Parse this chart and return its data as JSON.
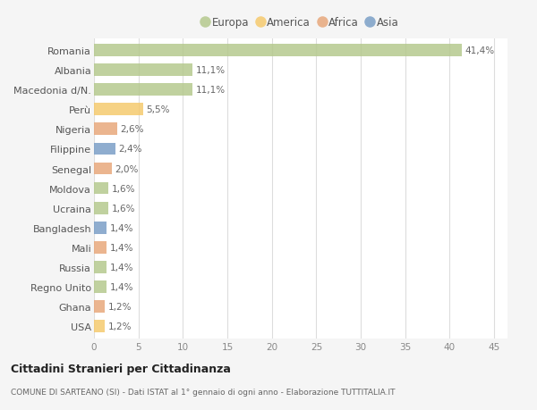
{
  "countries": [
    "Romania",
    "Albania",
    "Macedonia d/N.",
    "Perù",
    "Nigeria",
    "Filippine",
    "Senegal",
    "Moldova",
    "Ucraina",
    "Bangladesh",
    "Mali",
    "Russia",
    "Regno Unito",
    "Ghana",
    "USA"
  ],
  "values": [
    41.4,
    11.1,
    11.1,
    5.5,
    2.6,
    2.4,
    2.0,
    1.6,
    1.6,
    1.4,
    1.4,
    1.4,
    1.4,
    1.2,
    1.2
  ],
  "labels": [
    "41,4%",
    "11,1%",
    "11,1%",
    "5,5%",
    "2,6%",
    "2,4%",
    "2,0%",
    "1,6%",
    "1,6%",
    "1,4%",
    "1,4%",
    "1,4%",
    "1,4%",
    "1,2%",
    "1,2%"
  ],
  "categories": [
    "Europa",
    "Europa",
    "Europa",
    "America",
    "Africa",
    "Asia",
    "Africa",
    "Europa",
    "Europa",
    "Asia",
    "Africa",
    "Europa",
    "Europa",
    "Africa",
    "America"
  ],
  "color_map": {
    "Europa": "#b5c98e",
    "America": "#f5ca6e",
    "Africa": "#e8a87c",
    "Asia": "#7b9fc7"
  },
  "legend_order": [
    "Europa",
    "America",
    "Africa",
    "Asia"
  ],
  "background_color": "#f5f5f5",
  "plot_background": "#ffffff",
  "grid_color": "#dddddd",
  "title1": "Cittadini Stranieri per Cittadinanza",
  "title2": "COMUNE DI SARTEANO (SI) - Dati ISTAT al 1° gennaio di ogni anno - Elaborazione TUTTITALIA.IT",
  "xlabel_vals": [
    0,
    5,
    10,
    15,
    20,
    25,
    30,
    35,
    40,
    45
  ],
  "xlim": [
    0,
    46.5
  ]
}
